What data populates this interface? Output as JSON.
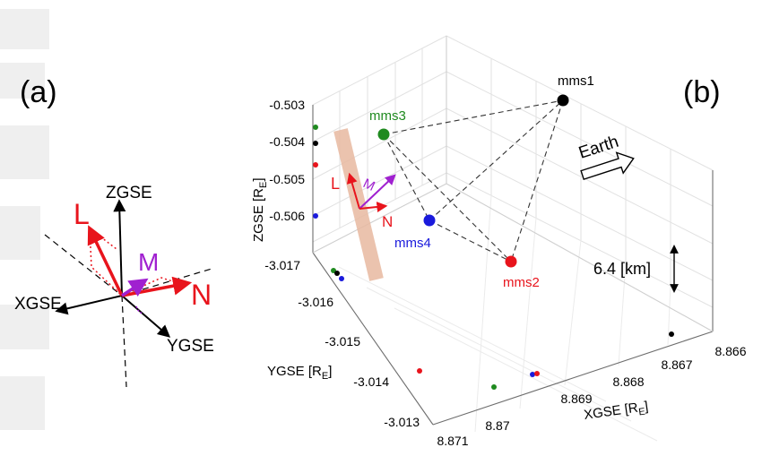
{
  "panel_a": {
    "label": "(a)",
    "axes": {
      "z": "ZGSE",
      "x": "XGSE",
      "y": "YGSE"
    },
    "vectors": {
      "L": "L",
      "M": "M",
      "N": "N"
    },
    "colors": {
      "L": "#e8141c",
      "M": "#a020d0",
      "N": "#e8141c",
      "axis": "#000000"
    }
  },
  "panel_b": {
    "label": "(b)",
    "z_axis": {
      "label": "ZGSE [R",
      "sub": "E",
      "close": "]",
      "ticks": [
        "-0.503",
        "-0.504",
        "-0.505",
        "-0.506"
      ]
    },
    "y_axis": {
      "label": "YGSE [R",
      "sub": "E",
      "close": "]",
      "ticks": [
        "-3.017",
        "-3.016",
        "-3.015",
        "-3.014",
        "-3.013"
      ]
    },
    "x_axis": {
      "label": "XGSE [R",
      "sub": "E",
      "close": "]",
      "ticks": [
        "8.871",
        "8.87",
        "8.869",
        "8.868",
        "8.867",
        "8.866"
      ]
    },
    "spacecraft": [
      {
        "name": "mms1",
        "color": "#000000"
      },
      {
        "name": "mms2",
        "color": "#e8141c"
      },
      {
        "name": "mms3",
        "color": "#1f8a1f"
      },
      {
        "name": "mms4",
        "color": "#1a1adc"
      }
    ],
    "earth_label": "Earth",
    "scale_label": "6.4 [km]",
    "lmn": {
      "L": "L",
      "M": "M",
      "N": "N"
    },
    "current_sheet_color": "#e8b9a0"
  }
}
